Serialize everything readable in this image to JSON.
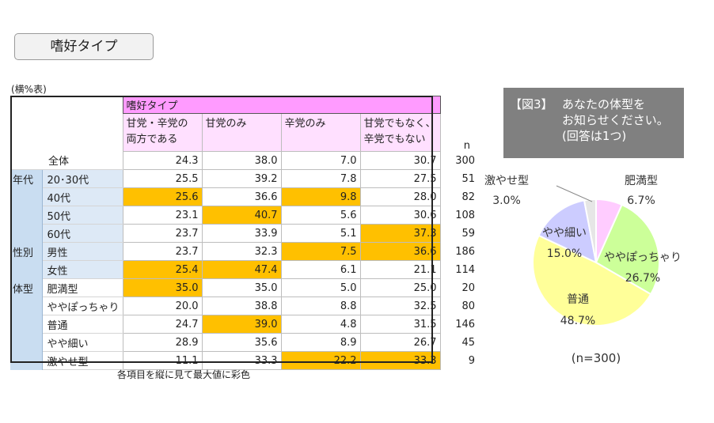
{
  "title_button": "嗜好タイプ",
  "table_note": "(横%表)",
  "footnote": "各項目を縦に見て最大値に彩色",
  "table": {
    "group_header": "嗜好タイプ",
    "columns": [
      "甘党・辛党の\n両方である",
      "甘党のみ",
      "辛党のみ",
      "甘党でもなく、\n辛党でもない"
    ],
    "n_label": "n",
    "total_row": {
      "label": "全体",
      "values": [
        "24.3",
        "38.0",
        "7.0",
        "30.7"
      ],
      "n": "300"
    },
    "groups": [
      {
        "name": "年代",
        "rows": [
          {
            "label": "20･30代",
            "values": [
              "25.5",
              "39.2",
              "7.8",
              "27.5"
            ],
            "n": "51",
            "hl": []
          },
          {
            "label": "40代",
            "values": [
              "25.6",
              "36.6",
              "9.8",
              "28.0"
            ],
            "n": "82",
            "hl": [
              0,
              2
            ]
          },
          {
            "label": "50代",
            "values": [
              "23.1",
              "40.7",
              "5.6",
              "30.6"
            ],
            "n": "108",
            "hl": [
              1
            ]
          },
          {
            "label": "60代",
            "values": [
              "23.7",
              "33.9",
              "5.1",
              "37.3"
            ],
            "n": "59",
            "hl": [
              3
            ]
          }
        ]
      },
      {
        "name": "性別",
        "rows": [
          {
            "label": "男性",
            "values": [
              "23.7",
              "32.3",
              "7.5",
              "36.6"
            ],
            "n": "186",
            "hl": [
              2,
              3
            ]
          },
          {
            "label": "女性",
            "values": [
              "25.4",
              "47.4",
              "6.1",
              "21.1"
            ],
            "n": "114",
            "hl": [
              0,
              1
            ]
          }
        ]
      },
      {
        "name": "体型",
        "rows": [
          {
            "label": "肥満型",
            "values": [
              "35.0",
              "35.0",
              "5.0",
              "25.0"
            ],
            "n": "20",
            "hl": [
              0
            ]
          },
          {
            "label": "ややぽっちゃり",
            "values": [
              "20.0",
              "38.8",
              "8.8",
              "32.5"
            ],
            "n": "80",
            "hl": []
          },
          {
            "label": "普通",
            "values": [
              "24.7",
              "39.0",
              "4.8",
              "31.5"
            ],
            "n": "146",
            "hl": [
              1
            ]
          },
          {
            "label": "やや細い",
            "values": [
              "28.9",
              "35.6",
              "8.9",
              "26.7"
            ],
            "n": "45",
            "hl": []
          },
          {
            "label": "激やせ型",
            "values": [
              "11.1",
              "33.3",
              "22.2",
              "33.3"
            ],
            "n": "9",
            "hl": [
              2,
              3
            ]
          }
        ]
      }
    ]
  },
  "figure": {
    "label": "【図3】",
    "title": "あなたの体型を\nお知らせください。\n(回答は1つ)",
    "n_text": "(n=300)"
  },
  "chart_data": {
    "type": "pie",
    "categories": [
      "肥満型",
      "ややぽっちゃり",
      "普通",
      "やや細い",
      "激やせ型"
    ],
    "values": [
      6.7,
      26.7,
      48.7,
      15.0,
      3.0
    ],
    "value_labels": [
      "6.7%",
      "26.7%",
      "48.7%",
      "15.0%",
      "3.0%"
    ],
    "colors": [
      "#ffccff",
      "#ccff99",
      "#ffff99",
      "#ccccff",
      "#e6e6e6"
    ],
    "highlight_color": "#ffc000",
    "header_pink": "#ff9bff"
  }
}
